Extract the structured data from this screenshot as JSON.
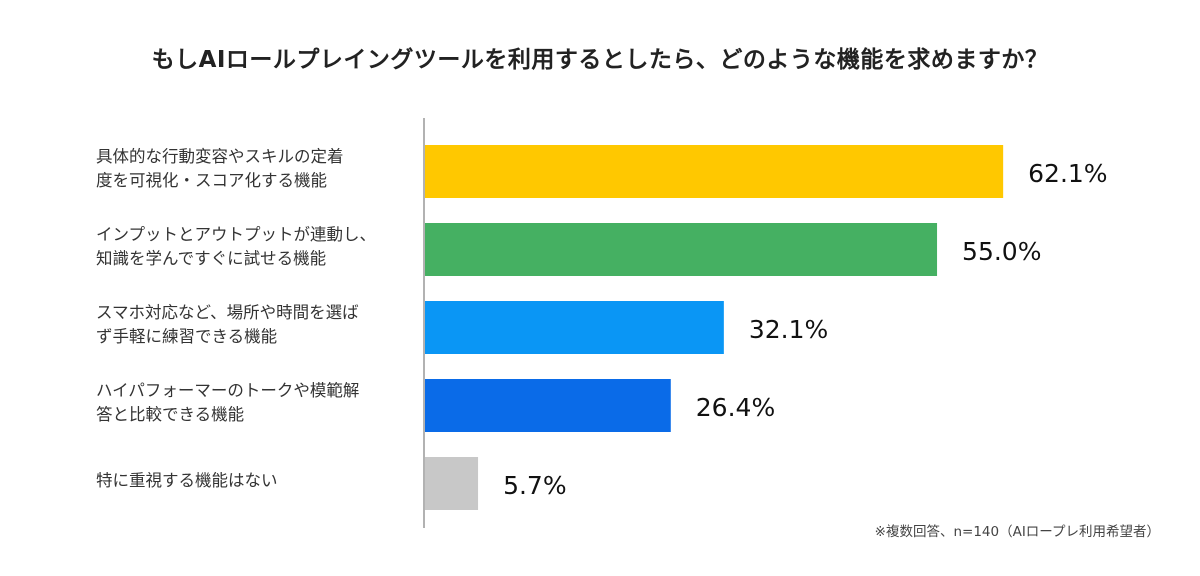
{
  "chart_data": {
    "type": "bar",
    "orientation": "horizontal",
    "title": "もしAIロールプレイングツールを利用するとしたら、どのような機能を求めますか？",
    "categories": [
      "具体的な行動変容やスキルの定着\n度を可視化・スコア化する機能",
      "インプットとアウトプットが連動し、\n知識を学んですぐに試せる機能",
      "スマホ対応など、場所や時間を選ば\nず手軽に練習できる機能",
      "ハイパフォーマーのトークや模範解\n答と比較できる機能",
      "特に重視する機能はない"
    ],
    "values": [
      62.1,
      55.0,
      32.1,
      26.4,
      5.7
    ],
    "data_labels": [
      "62.1%",
      "55.0%",
      "32.1%",
      "26.4%",
      "5.7%"
    ],
    "colors": [
      "#FFC800",
      "#45B062",
      "#0A96F5",
      "#0A6BE8",
      "#C8C8C8"
    ],
    "unit": "%",
    "grid": false,
    "note": "※複数回答、n=140（AIロープレ利用希望者）"
  }
}
